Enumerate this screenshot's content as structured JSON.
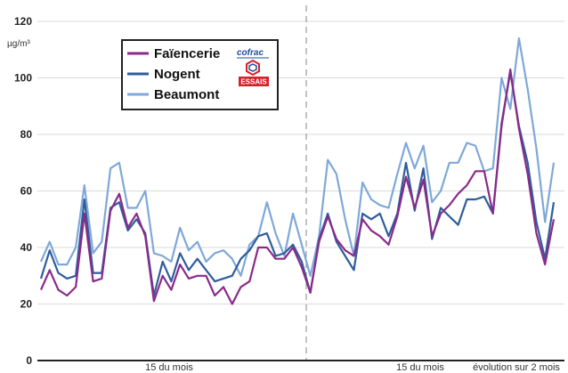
{
  "chart_data": {
    "type": "line",
    "ylabel": "µg/m³",
    "ylim": [
      0,
      120
    ],
    "yticks": [
      "0",
      "20",
      "40",
      "60",
      "80",
      "100",
      "120"
    ],
    "xtick_labels": [
      "15 du mois",
      "15 du mois",
      "évolution sur 2 mois"
    ],
    "x_count": 60,
    "legend_placement": "top-left",
    "series": [
      {
        "name": "Faïencerie",
        "color": "#8a2a8a",
        "values": [
          25,
          32,
          25,
          23,
          26,
          52,
          28,
          29,
          53,
          59,
          47,
          52,
          44,
          21,
          30,
          25,
          34,
          29,
          30,
          30,
          23,
          26,
          20,
          26,
          28,
          40,
          40,
          36,
          36,
          40,
          33,
          24,
          42,
          51,
          43,
          39,
          37,
          50,
          46,
          44,
          41,
          51,
          65,
          54,
          64,
          44,
          52,
          55,
          59,
          62,
          67,
          67,
          52,
          83,
          103,
          82,
          66,
          45,
          34,
          50
        ]
      },
      {
        "name": "Nogent",
        "color": "#2f5d9b",
        "values": [
          29,
          39,
          31,
          29,
          30,
          57,
          31,
          31,
          54,
          56,
          46,
          50,
          45,
          23,
          35,
          28,
          38,
          32,
          36,
          32,
          28,
          29,
          30,
          36,
          39,
          44,
          45,
          37,
          38,
          41,
          35,
          24,
          43,
          52,
          42,
          37,
          32,
          52,
          50,
          52,
          44,
          52,
          70,
          53,
          68,
          43,
          54,
          51,
          48,
          57,
          57,
          58,
          52,
          84,
          102,
          83,
          70,
          49,
          36,
          56
        ]
      },
      {
        "name": "Beaumont",
        "color": "#7fa8d8",
        "values": [
          35,
          42,
          34,
          34,
          40,
          62,
          38,
          42,
          68,
          70,
          54,
          54,
          60,
          38,
          37,
          35,
          47,
          39,
          42,
          35,
          38,
          39,
          36,
          30,
          41,
          44,
          56,
          45,
          37,
          52,
          41,
          30,
          44,
          71,
          66,
          50,
          37,
          63,
          57,
          55,
          54,
          66,
          77,
          68,
          76,
          56,
          60,
          70,
          70,
          77,
          76,
          67,
          68,
          100,
          89,
          114,
          96,
          75,
          49,
          70
        ]
      }
    ]
  },
  "legend": {
    "items": [
      "Faïencerie",
      "Nogent",
      "Beaumont"
    ],
    "logo_top": "cofrac",
    "logo_bottom": "ESSAIS"
  }
}
